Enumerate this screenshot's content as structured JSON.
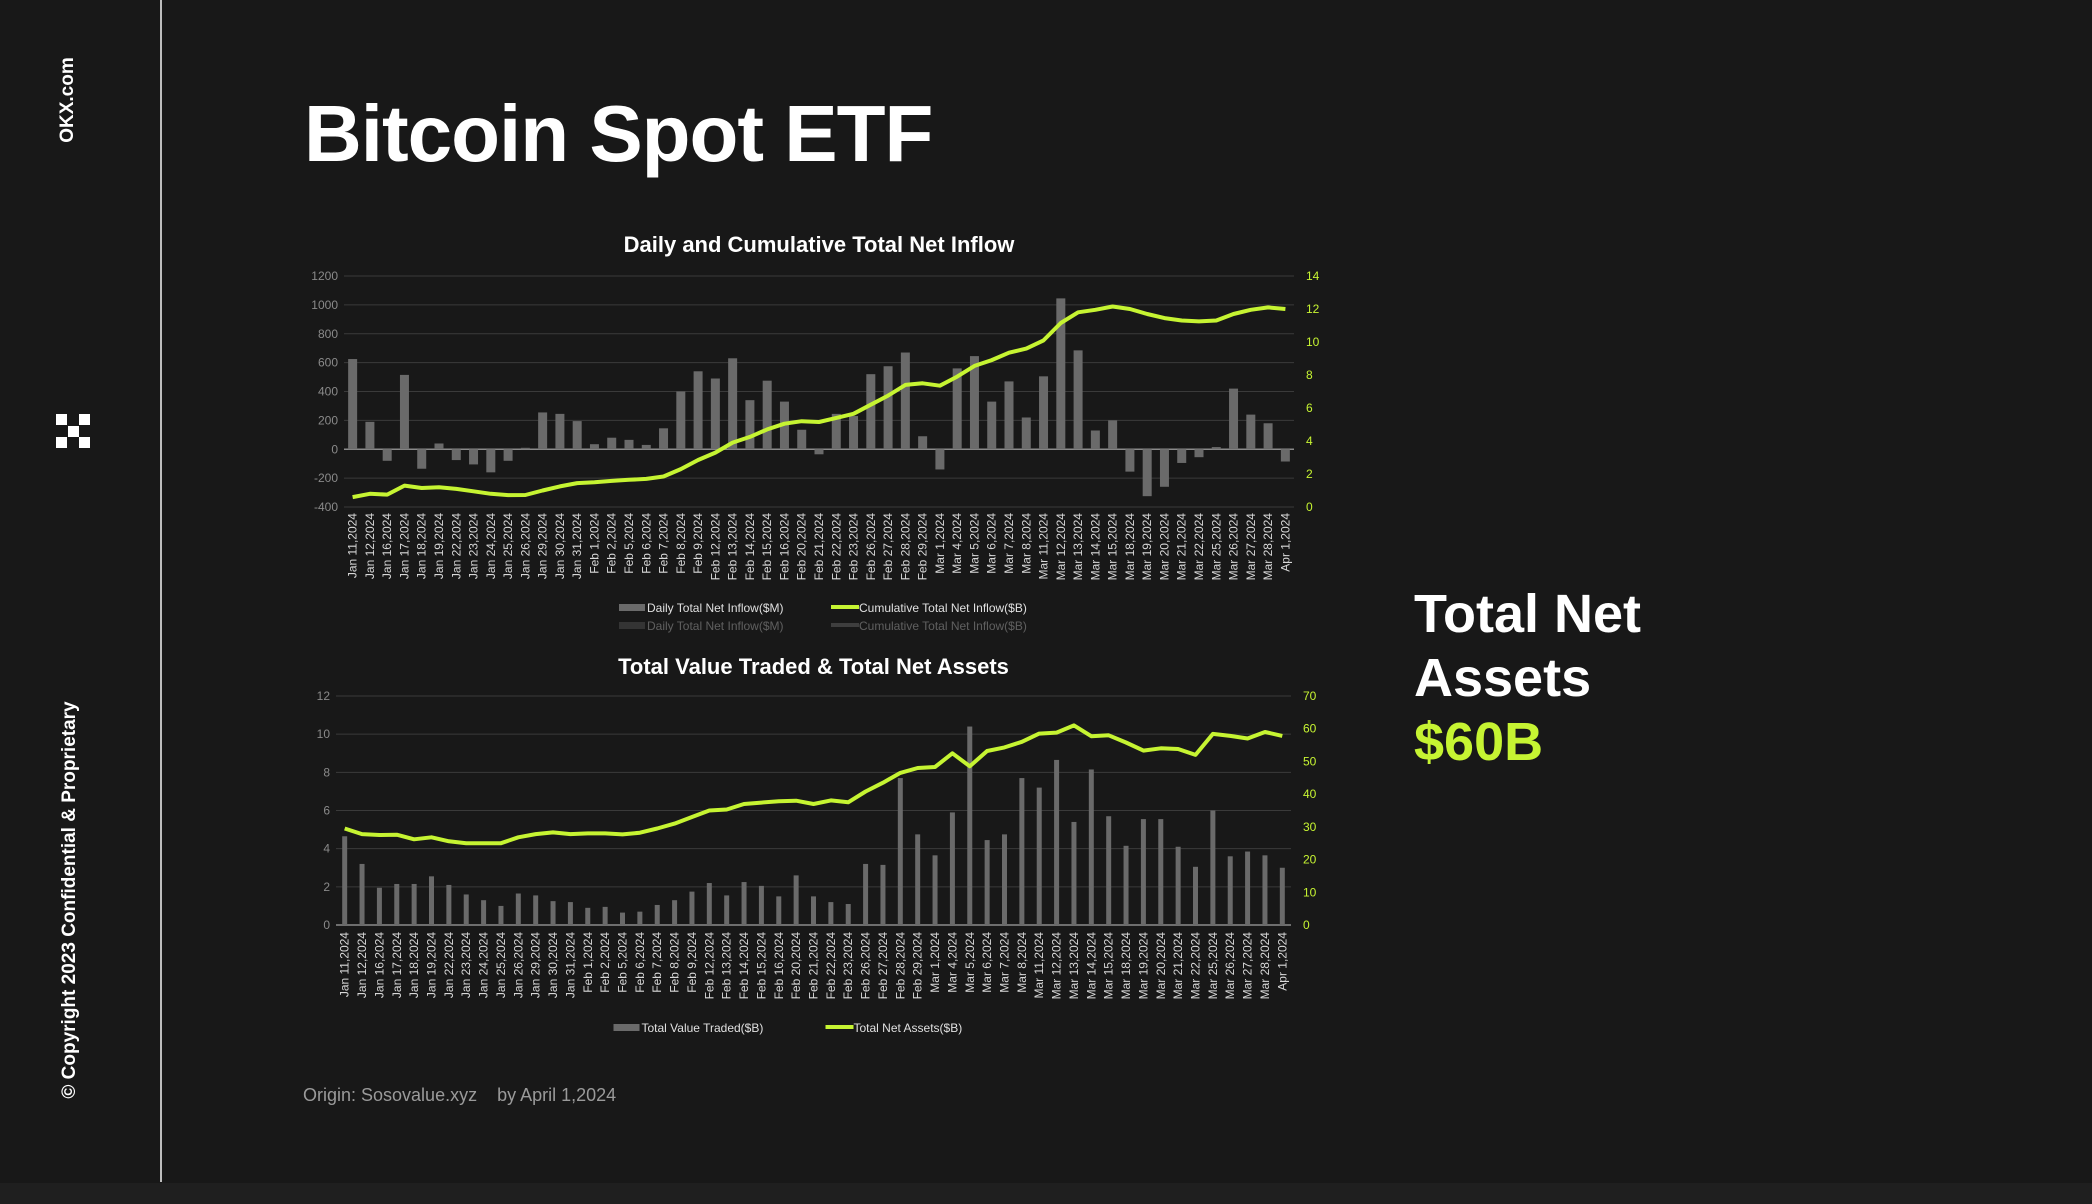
{
  "sidebar": {
    "brand": "OKX.com",
    "copyright": "© Copyright 2023 Confidential & Proprietary",
    "logo": "okx-logo"
  },
  "page_title": "Bitcoin Spot ETF",
  "kpi": {
    "label": "Total Net Assets",
    "value": "$60B"
  },
  "footer": {
    "origin": "Origin: Sosovalue.xyz",
    "date": "by April 1,2024"
  },
  "colors": {
    "background": "#181818",
    "accent": "#c6f432",
    "bar": "#6a6a6a"
  },
  "chart_data": [
    {
      "type": "bar+line",
      "title": "Daily and Cumulative Total Net Inflow",
      "categories": [
        "Jan 11,2024",
        "Jan 12,2024",
        "Jan 16,2024",
        "Jan 17,2024",
        "Jan 18,2024",
        "Jan 19,2024",
        "Jan 22,2024",
        "Jan 23,2024",
        "Jan 24,2024",
        "Jan 25,2024",
        "Jan 26,2024",
        "Jan 29,2024",
        "Jan 30,2024",
        "Jan 31,2024",
        "Feb 1,2024",
        "Feb 2,2024",
        "Feb 5,2024",
        "Feb 6,2024",
        "Feb 7,2024",
        "Feb 8,2024",
        "Feb 9,2024",
        "Feb 12,2024",
        "Feb 13,2024",
        "Feb 14,2024",
        "Feb 15,2024",
        "Feb 16,2024",
        "Feb 20,2024",
        "Feb 21,2024",
        "Feb 22,2024",
        "Feb 23,2024",
        "Feb 26,2024",
        "Feb 27,2024",
        "Feb 28,2024",
        "Feb 29,2024",
        "Mar 1,2024",
        "Mar 4,2024",
        "Mar 5,2024",
        "Mar 6,2024",
        "Mar 7,2024",
        "Mar 8,2024",
        "Mar 11,2024",
        "Mar 12,2024",
        "Mar 13,2024",
        "Mar 14,2024",
        "Mar 15,2024",
        "Mar 18,2024",
        "Mar 19,2024",
        "Mar 20,2024",
        "Mar 21,2024",
        "Mar 22,2024",
        "Mar 25,2024",
        "Mar 26,2024",
        "Mar 27,2024",
        "Mar 28,2024",
        "Apr 1,2024"
      ],
      "series": [
        {
          "name": "Daily Total Net Inflow($M)",
          "type": "bar",
          "axis": "left",
          "values": [
            625,
            190,
            -80,
            515,
            -135,
            40,
            -75,
            -105,
            -160,
            -80,
            10,
            255,
            245,
            195,
            35,
            80,
            65,
            30,
            145,
            400,
            540,
            490,
            630,
            340,
            475,
            330,
            135,
            -35,
            245,
            230,
            520,
            575,
            670,
            90,
            -140,
            560,
            645,
            330,
            470,
            220,
            505,
            1045,
            685,
            130,
            200,
            -155,
            -325,
            -260,
            -95,
            -55,
            15,
            420,
            240,
            180,
            -85
          ]
        },
        {
          "name": "Cumulative Total Net Inflow($B)",
          "type": "line",
          "axis": "right",
          "values": [
            0.6,
            0.8,
            0.75,
            1.3,
            1.15,
            1.2,
            1.1,
            0.95,
            0.8,
            0.72,
            0.73,
            1.0,
            1.25,
            1.45,
            1.5,
            1.58,
            1.65,
            1.7,
            1.85,
            2.3,
            2.85,
            3.3,
            3.9,
            4.25,
            4.7,
            5.05,
            5.2,
            5.15,
            5.4,
            5.65,
            6.2,
            6.75,
            7.4,
            7.5,
            7.35,
            7.9,
            8.55,
            8.9,
            9.35,
            9.6,
            10.1,
            11.15,
            11.8,
            11.95,
            12.15,
            12.0,
            11.7,
            11.45,
            11.3,
            11.25,
            11.3,
            11.7,
            11.95,
            12.1,
            12.0
          ]
        }
      ],
      "yleft": {
        "ticks": [
          1200,
          1000,
          800,
          600,
          400,
          200,
          0,
          -200,
          -400
        ],
        "lim": [
          -400,
          1200
        ]
      },
      "yright": {
        "ticks": [
          14,
          12,
          10,
          8,
          6,
          4,
          2,
          0
        ],
        "lim": [
          0,
          14
        ]
      },
      "grid": true,
      "legend": "bottom"
    },
    {
      "type": "bar+line",
      "title": "Total Value Traded & Total Net Assets",
      "categories": [
        "Jan 11,2024",
        "Jan 12,2024",
        "Jan 16,2024",
        "Jan 17,2024",
        "Jan 18,2024",
        "Jan 19,2024",
        "Jan 22,2024",
        "Jan 23,2024",
        "Jan 24,2024",
        "Jan 25,2024",
        "Jan 26,2024",
        "Jan 29,2024",
        "Jan 30,2024",
        "Jan 31,2024",
        "Feb 1,2024",
        "Feb 2,2024",
        "Feb 5,2024",
        "Feb 6,2024",
        "Feb 7,2024",
        "Feb 8,2024",
        "Feb 9,2024",
        "Feb 12,2024",
        "Feb 13,2024",
        "Feb 14,2024",
        "Feb 15,2024",
        "Feb 16,2024",
        "Feb 20,2024",
        "Feb 21,2024",
        "Feb 22,2024",
        "Feb 23,2024",
        "Feb 26,2024",
        "Feb 27,2024",
        "Feb 28,2024",
        "Feb 29,2024",
        "Mar 1,2024",
        "Mar 4,2024",
        "Mar 5,2024",
        "Mar 6,2024",
        "Mar 7,2024",
        "Mar 8,2024",
        "Mar 11,2024",
        "Mar 12,2024",
        "Mar 13,2024",
        "Mar 14,2024",
        "Mar 15,2024",
        "Mar 18,2024",
        "Mar 19,2024",
        "Mar 20,2024",
        "Mar 21,2024",
        "Mar 22,2024",
        "Mar 25,2024",
        "Mar 26,2024",
        "Mar 27,2024",
        "Mar 28,2024",
        "Apr 1,2024"
      ],
      "series": [
        {
          "name": "Total Value Traded($B)",
          "type": "bar",
          "axis": "left",
          "values": [
            4.65,
            3.2,
            1.95,
            2.15,
            2.15,
            2.55,
            2.1,
            1.6,
            1.3,
            1.0,
            1.65,
            1.55,
            1.25,
            1.2,
            0.9,
            0.95,
            0.65,
            0.7,
            1.05,
            1.3,
            1.75,
            2.2,
            1.55,
            2.25,
            2.05,
            1.5,
            2.6,
            1.5,
            1.2,
            1.1,
            3.2,
            3.15,
            7.7,
            4.75,
            3.65,
            5.9,
            10.4,
            4.45,
            4.75,
            7.7,
            7.2,
            8.65,
            5.4,
            8.15,
            5.7,
            4.15,
            5.55,
            5.55,
            4.1,
            3.05,
            6.0,
            3.6,
            3.85,
            3.65,
            3.0
          ]
        },
        {
          "name": "Total Net Assets($B)",
          "type": "line",
          "axis": "right",
          "values": [
            29.5,
            27.8,
            27.5,
            27.6,
            26.2,
            26.8,
            25.6,
            25,
            25,
            25,
            26.8,
            27.8,
            28.3,
            27.8,
            28,
            28,
            27.7,
            28.2,
            29.5,
            31,
            33,
            35,
            35.3,
            37,
            37.4,
            37.8,
            38,
            37,
            38.1,
            37.5,
            40.8,
            43.5,
            46.5,
            48,
            48.3,
            52.5,
            48.5,
            53.2,
            54.3,
            56,
            58.5,
            58.8,
            61,
            57.7,
            58,
            55.8,
            53.3,
            54,
            53.8,
            52,
            58.4,
            57.8,
            57,
            59,
            57.8
          ]
        }
      ],
      "yleft": {
        "ticks": [
          12,
          10,
          8,
          6,
          4,
          2,
          0
        ],
        "lim": [
          0,
          12
        ]
      },
      "yright": {
        "ticks": [
          70,
          60,
          50,
          40,
          30,
          20,
          10,
          0
        ],
        "lim": [
          0,
          70
        ]
      },
      "grid": true,
      "legend": "bottom"
    }
  ]
}
